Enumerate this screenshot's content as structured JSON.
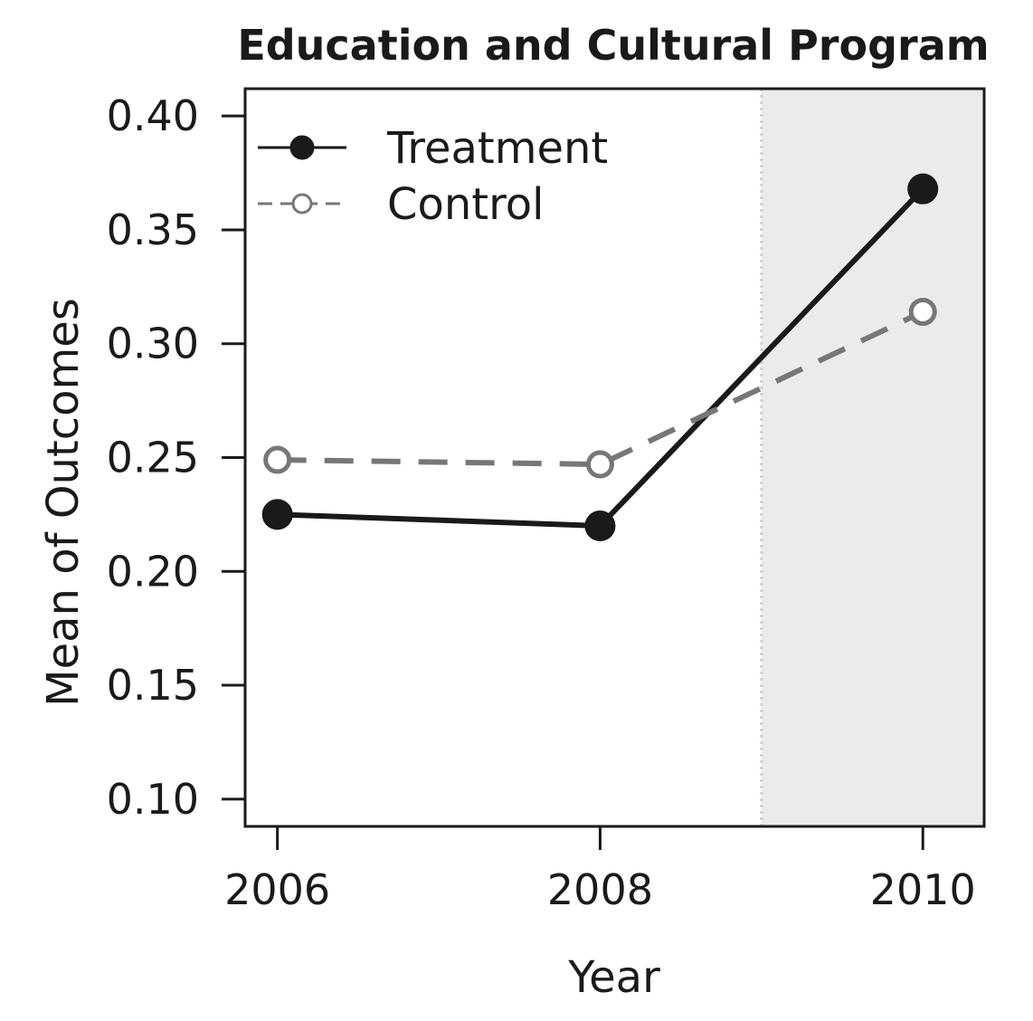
{
  "chart_data": {
    "type": "line",
    "title": "Education and Cultural Program",
    "xlabel": "Year",
    "ylabel": "Mean of Outcomes",
    "x": [
      2006,
      2008,
      2010
    ],
    "x_ticks": [
      "2006",
      "2008",
      "2010"
    ],
    "y_ticks": [
      "0.10",
      "0.15",
      "0.20",
      "0.25",
      "0.30",
      "0.35",
      "0.40"
    ],
    "y_tick_values": [
      0.1,
      0.15,
      0.2,
      0.25,
      0.3,
      0.35,
      0.4
    ],
    "xlim": [
      2005.8,
      2010.38
    ],
    "ylim": [
      0.088,
      0.412
    ],
    "grid": false,
    "legend_position": "top-left",
    "post_period_shading": {
      "from": 2009,
      "to": 2010.38,
      "color": "#e9eceb"
    },
    "series": [
      {
        "name": "Treatment",
        "values": [
          0.225,
          0.22,
          0.368
        ],
        "color": "#1a1a1a",
        "line_style": "solid",
        "marker": "filled-circle"
      },
      {
        "name": "Control",
        "values": [
          0.249,
          0.247,
          0.314
        ],
        "color": "#777777",
        "line_style": "dashed",
        "marker": "open-circle"
      }
    ]
  }
}
